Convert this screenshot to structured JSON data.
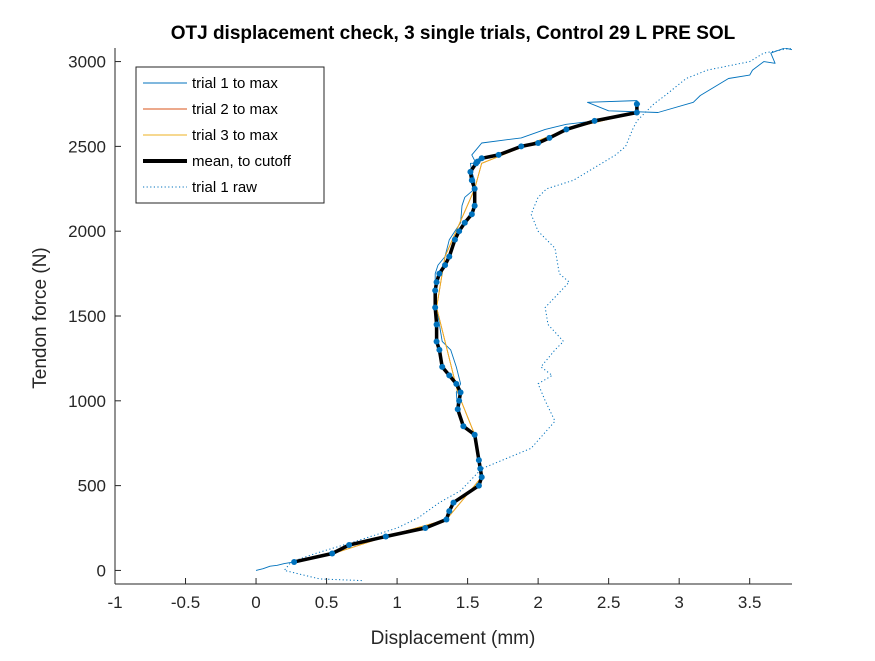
{
  "chart_data": {
    "type": "line",
    "title": "OTJ displacement check, 3 single trials, Control 29 L PRE SOL",
    "xlabel": "Displacement (mm)",
    "ylabel": "Tendon force (N)",
    "xlim": [
      -1,
      3.8
    ],
    "ylim": [
      -80,
      3080
    ],
    "xticks": [
      -1,
      -0.5,
      0,
      0.5,
      1,
      1.5,
      2,
      2.5,
      3,
      3.5
    ],
    "xtick_labels": [
      "-1",
      "-0.5",
      "0",
      "0.5",
      "1",
      "1.5",
      "2",
      "2.5",
      "3",
      "3.5"
    ],
    "yticks": [
      0,
      500,
      1000,
      1500,
      2000,
      2500,
      3000
    ],
    "ytick_labels": [
      "0",
      "500",
      "1000",
      "1500",
      "2000",
      "2500",
      "3000"
    ],
    "grid": false,
    "legend_position": "top-left",
    "legend": [
      {
        "label": "trial 1 to max",
        "color": "#0072BD",
        "style": "solid-thin"
      },
      {
        "label": "trial 2 to max",
        "color": "#D95319",
        "style": "solid-thin"
      },
      {
        "label": "trial 3 to max",
        "color": "#EDB120",
        "style": "solid-thin"
      },
      {
        "label": "mean, to cutoff",
        "color": "#000000",
        "style": "solid-thick"
      },
      {
        "label": "trial 1 raw",
        "color": "#0072BD",
        "style": "dotted"
      }
    ],
    "series": [
      {
        "name": "trial 1 to max",
        "color": "#0072BD",
        "x": [
          0.0,
          0.05,
          0.1,
          0.15,
          0.2,
          0.27,
          0.55,
          0.66,
          0.92,
          1.2,
          1.35,
          1.37,
          1.4,
          1.58,
          1.6,
          1.58,
          1.55,
          1.47,
          1.43,
          1.42,
          1.45,
          1.42,
          1.38,
          1.32,
          1.3,
          1.28,
          1.28,
          1.27,
          1.27,
          1.29,
          1.34,
          1.37,
          1.41,
          1.45,
          1.46,
          1.48,
          1.55,
          1.55,
          1.53,
          1.52,
          1.56,
          1.53,
          1.58,
          1.6,
          1.88,
          2.05,
          2.2,
          2.4,
          2.68,
          2.72,
          2.7,
          2.35,
          2.5,
          2.85,
          3.1,
          3.15,
          3.25,
          3.35,
          3.5,
          3.52,
          3.6,
          3.68,
          3.65,
          3.75,
          3.8
        ],
        "y": [
          0,
          10,
          25,
          30,
          40,
          50,
          100,
          150,
          200,
          250,
          300,
          350,
          400,
          500,
          550,
          650,
          800,
          850,
          950,
          1050,
          1100,
          1200,
          1300,
          1350,
          1450,
          1550,
          1650,
          1700,
          1750,
          1800,
          1850,
          1950,
          2000,
          2050,
          2150,
          2200,
          2250,
          2300,
          2350,
          2400,
          2400,
          2450,
          2500,
          2520,
          2550,
          2600,
          2630,
          2650,
          2700,
          2750,
          2770,
          2760,
          2710,
          2700,
          2760,
          2800,
          2850,
          2900,
          2920,
          2950,
          3000,
          2990,
          3050,
          3080,
          3070
        ]
      },
      {
        "name": "trial 2 to max",
        "color": "#D95319",
        "x": [
          0.27,
          0.55,
          0.92,
          1.35,
          1.6,
          1.55,
          1.43,
          1.28,
          1.34,
          1.55,
          1.6,
          2.2,
          2.7
        ],
        "y": [
          50,
          100,
          200,
          300,
          550,
          800,
          1050,
          1550,
          1850,
          2250,
          2400,
          2600,
          2700
        ]
      },
      {
        "name": "trial 3 to max",
        "color": "#EDB120",
        "x": [
          0.27,
          0.55,
          0.92,
          1.35,
          1.6,
          1.55,
          1.43,
          1.28,
          1.34,
          1.55,
          1.6,
          2.2,
          2.7
        ],
        "y": [
          50,
          100,
          200,
          300,
          550,
          800,
          1050,
          1550,
          1850,
          2250,
          2400,
          2600,
          2700
        ]
      },
      {
        "name": "mean, to cutoff",
        "color": "#000000",
        "markers": true,
        "marker_color": "#0072BD",
        "x": [
          0.27,
          0.54,
          0.66,
          0.92,
          1.2,
          1.35,
          1.37,
          1.4,
          1.58,
          1.6,
          1.59,
          1.58,
          1.55,
          1.47,
          1.43,
          1.44,
          1.45,
          1.42,
          1.37,
          1.32,
          1.3,
          1.28,
          1.28,
          1.27,
          1.27,
          1.28,
          1.3,
          1.34,
          1.37,
          1.41,
          1.44,
          1.48,
          1.53,
          1.55,
          1.55,
          1.53,
          1.52,
          1.56,
          1.57,
          1.6,
          1.72,
          1.88,
          2.0,
          2.08,
          2.2,
          2.4,
          2.7,
          2.7
        ],
        "y": [
          50,
          100,
          150,
          200,
          250,
          300,
          350,
          400,
          500,
          550,
          600,
          650,
          800,
          850,
          950,
          1000,
          1050,
          1100,
          1150,
          1200,
          1300,
          1350,
          1450,
          1550,
          1650,
          1700,
          1750,
          1800,
          1850,
          1950,
          2000,
          2050,
          2100,
          2150,
          2250,
          2300,
          2350,
          2400,
          2410,
          2430,
          2450,
          2500,
          2520,
          2550,
          2600,
          2650,
          2700,
          2750
        ]
      },
      {
        "name": "trial 1 raw",
        "color": "#0072BD",
        "style": "dotted",
        "x": [
          0.75,
          0.45,
          0.2,
          0.25,
          0.42,
          0.7,
          1.0,
          1.15,
          1.3,
          1.45,
          1.6,
          1.95,
          2.12,
          2.05,
          2.0,
          2.1,
          2.02,
          2.12,
          2.18,
          2.07,
          2.05,
          2.22,
          2.15,
          2.12,
          2.0,
          1.95,
          2.0,
          2.06,
          2.25,
          2.55,
          2.62,
          2.67,
          2.7,
          2.76,
          2.82,
          2.9,
          3.05,
          3.2,
          3.5,
          3.6,
          3.8
        ],
        "y": [
          -60,
          -50,
          0,
          50,
          100,
          170,
          250,
          310,
          400,
          470,
          600,
          720,
          880,
          1000,
          1100,
          1150,
          1200,
          1300,
          1350,
          1450,
          1550,
          1700,
          1750,
          1900,
          2000,
          2100,
          2200,
          2250,
          2300,
          2450,
          2500,
          2600,
          2650,
          2700,
          2750,
          2800,
          2900,
          2950,
          3000,
          3050,
          3080
        ]
      }
    ]
  }
}
